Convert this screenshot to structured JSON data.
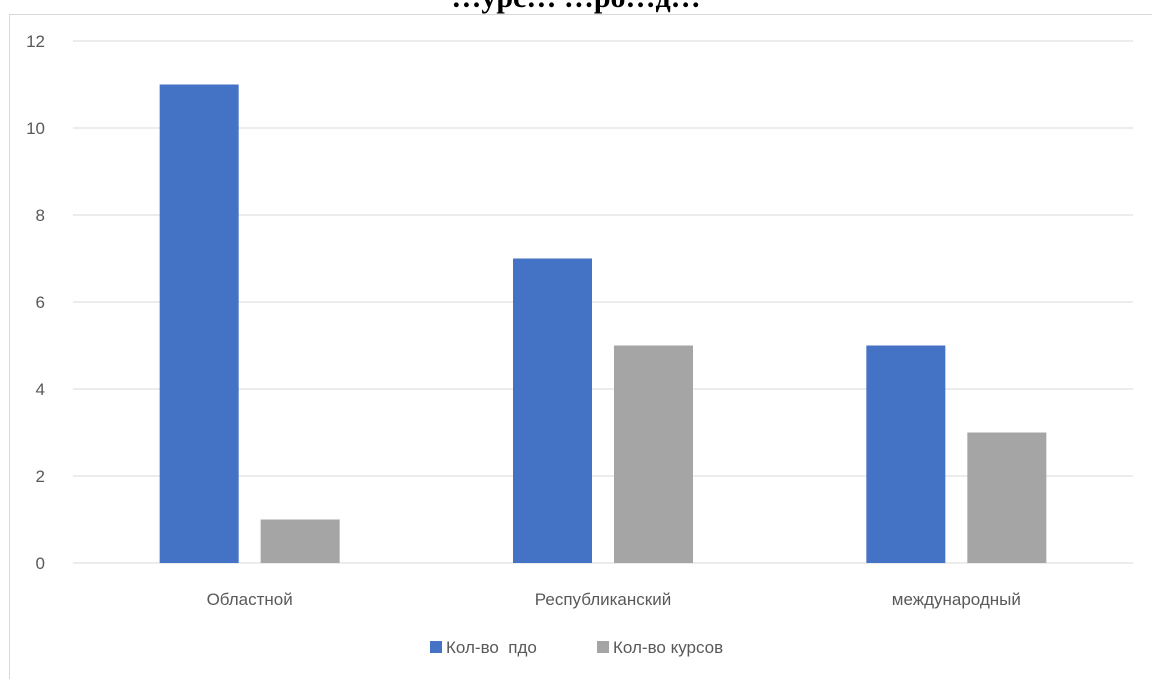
{
  "chart_data": {
    "type": "bar",
    "title": "…урс… …ро…д…",
    "categories": [
      "Областной",
      "Республиканский",
      "международный"
    ],
    "series": [
      {
        "name": "Кол-во  пдо",
        "color": "#4472C4",
        "values": [
          11,
          7,
          5
        ]
      },
      {
        "name": "Кол-во курсов",
        "color": "#A5A5A5",
        "values": [
          1,
          5,
          3
        ]
      }
    ],
    "ylim": [
      0,
      12
    ],
    "yticks": [
      0,
      2,
      4,
      6,
      8,
      10,
      12
    ],
    "grid": true,
    "legend_position": "bottom",
    "xlabel": "",
    "ylabel": ""
  }
}
